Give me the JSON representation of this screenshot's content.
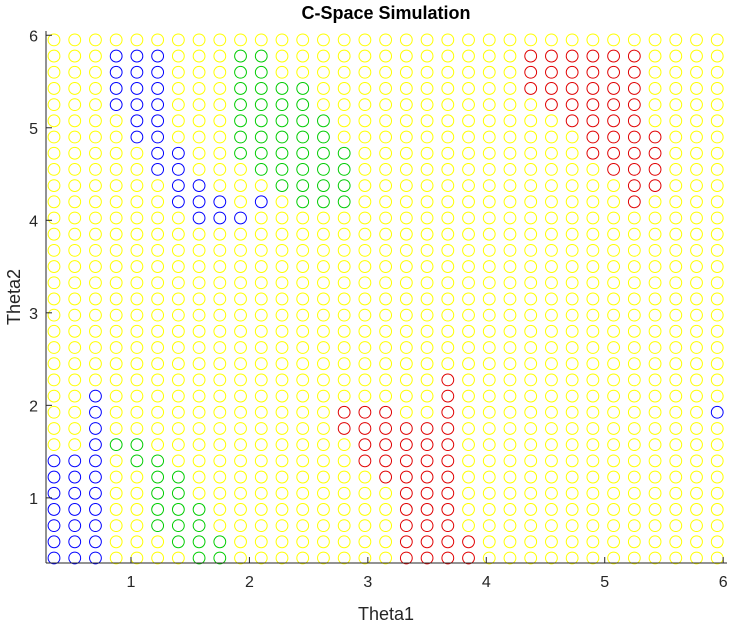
{
  "chart_data": {
    "type": "scatter",
    "title": "C-Space Simulation",
    "xlabel": "Theta1",
    "ylabel": "Theta2",
    "xlim": [
      0.35,
      6.1
    ],
    "ylim": [
      0.35,
      6.1
    ],
    "xticks": [
      "1",
      "2",
      "3",
      "4",
      "5",
      "6"
    ],
    "yticks": [
      "1",
      "2",
      "3",
      "4",
      "5",
      "6"
    ],
    "grid": false,
    "marker": "open-circle",
    "grid_points": {
      "x_start": 0.35,
      "x_step": 0.175,
      "x_count": 33,
      "y_start": 0.35,
      "y_step": 0.175,
      "y_count": 33
    },
    "default_color": "#ffff00",
    "classes": {
      "blue": "#0000ff",
      "green": "#00cc00",
      "red": "#e00000"
    },
    "regions": {
      "blue": [
        [
          3,
          28,
          31
        ],
        [
          4,
          26,
          31
        ],
        [
          5,
          24,
          31
        ],
        [
          6,
          22,
          25
        ],
        [
          7,
          21,
          23
        ],
        [
          8,
          21,
          22
        ],
        [
          9,
          21,
          21
        ],
        [
          10,
          22,
          22
        ],
        [
          0,
          0,
          6
        ],
        [
          1,
          0,
          6
        ],
        [
          2,
          0,
          10
        ],
        [
          32,
          9,
          9
        ]
      ],
      "green": [
        [
          9,
          25,
          31
        ],
        [
          10,
          24,
          31
        ],
        [
          11,
          23,
          29
        ],
        [
          12,
          22,
          29
        ],
        [
          13,
          22,
          27
        ],
        [
          14,
          22,
          25
        ],
        [
          3,
          7,
          7
        ],
        [
          4,
          6,
          7
        ],
        [
          5,
          2,
          6
        ],
        [
          6,
          1,
          5
        ],
        [
          7,
          0,
          3
        ],
        [
          8,
          0,
          1
        ]
      ],
      "red": [
        [
          23,
          29,
          31
        ],
        [
          24,
          28,
          31
        ],
        [
          25,
          27,
          31
        ],
        [
          26,
          25,
          31
        ],
        [
          27,
          24,
          31
        ],
        [
          28,
          22,
          31
        ],
        [
          29,
          23,
          26
        ],
        [
          14,
          8,
          9
        ],
        [
          15,
          6,
          9
        ],
        [
          16,
          5,
          9
        ],
        [
          17,
          0,
          8
        ],
        [
          18,
          0,
          8
        ],
        [
          19,
          0,
          11
        ],
        [
          20,
          0,
          1
        ]
      ]
    }
  }
}
